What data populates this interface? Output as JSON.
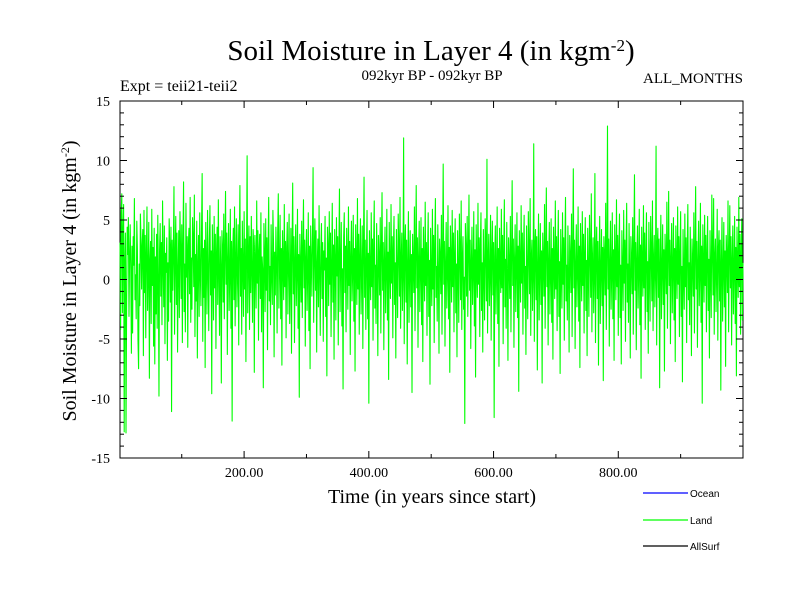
{
  "chart_data": {
    "type": "line",
    "title": "Soil Moisture in Layer 4 (in kgm",
    "title_sup": "-2",
    "title_close": ")",
    "subtitle_left": "Expt = teii21-teii2",
    "subtitle_center": "092kyr BP - 092kyr BP",
    "subtitle_right": "ALL_MONTHS",
    "xlabel": "Time (in years since start)",
    "ylabel": "Soil Moisture in Layer 4 (in kgm",
    "ylabel_sup": "-2",
    "ylabel_close": ")",
    "xlim": [
      1,
      1000
    ],
    "ylim": [
      -15,
      15
    ],
    "x_ticks": [
      200,
      400,
      600,
      800
    ],
    "x_tick_labels": [
      "200.00",
      "400.00",
      "600.00",
      "800.00"
    ],
    "y_ticks": [
      -15,
      -10,
      -5,
      0,
      5,
      10,
      15
    ],
    "y_tick_labels": [
      "-15",
      "-10",
      "-5",
      "0",
      "5",
      "10",
      "15"
    ],
    "grid": false,
    "legend_position": "bottom-right",
    "series": [
      {
        "name": "Ocean",
        "color": "#0000ff",
        "values": []
      },
      {
        "name": "Land",
        "color": "#00ff00",
        "x_start": 1,
        "x_step": 1,
        "values": [
          3.1,
          -4.2,
          5.6,
          7.2,
          -2.8,
          4.1,
          6.3,
          -12.8,
          1.5,
          3.9,
          -12.9,
          -2.4,
          4.4,
          2.1,
          5.2,
          -3.1,
          1.8,
          4.6,
          0.9,
          -6.2,
          2.8,
          -4.5,
          3.6,
          1.2,
          6.8,
          -1.7,
          0.4,
          -3.3,
          4.9,
          2.6,
          -5.1,
          -7.5,
          1.3,
          -2.2,
          5.5,
          3.4,
          -0.8,
          2.9,
          4.2,
          -6.4,
          5.8,
          -1.1,
          3.7,
          -4.9,
          2.3,
          6.1,
          -2.6,
          0.7,
          4.8,
          -8.3,
          1.6,
          3.2,
          -3.7,
          5.9,
          -0.5,
          2.7,
          -5.6,
          4.3,
          -7.1,
          1.9,
          -2.9,
          3.8,
          -4.1,
          5.4,
          0.3,
          -9.8,
          2.5,
          4.7,
          -1.4,
          3.1,
          -3.8,
          6.6,
          1.1,
          -2.3,
          4.5,
          -5.4,
          2.2,
          0.6,
          3.5,
          -6.8,
          1.4,
          -3.5,
          5.1,
          2.8,
          -1.9,
          4.4,
          -11.1,
          3.3,
          -0.9,
          2.4,
          7.8,
          -4.6,
          1.7,
          5.3,
          -2.1,
          3.9,
          -6.1,
          0.8,
          4.1,
          -3.2,
          5.7,
          2.6,
          -1.6,
          4.6,
          -5.3,
          3.1,
          8.2,
          -2.7,
          1.3,
          -4.4,
          6.4,
          0.2,
          3.6,
          -5.7,
          2.9,
          4.3,
          -1.2,
          6.9,
          -3.6,
          1.8,
          -2.5,
          5.2,
          3.4,
          -0.6,
          7.1,
          -4.8,
          2.1,
          -1.8,
          4.9,
          -6.6,
          1.2,
          3.7,
          -3.1,
          5.6,
          0.4,
          -2.2,
          4.2,
          8.9,
          -5.2,
          2.6,
          -1.5,
          3.3,
          -7.4,
          4.8,
          1.6,
          -2.9,
          5.8,
          0.9,
          -4.3,
          3.1,
          6.2,
          -1.3,
          2.4,
          -9.6,
          4.6,
          1.5,
          -3.4,
          5.3,
          -0.7,
          3.8,
          -5.8,
          2.3,
          4.4,
          -2.1,
          6.7,
          0.5,
          -4.7,
          3.6,
          1.1,
          -8.7,
          4.1,
          2.7,
          -1.9,
          5.5,
          -3.3,
          2.2,
          7.4,
          -0.4,
          3.9,
          -6.3,
          1.8,
          4.7,
          -2.6,
          0.3,
          5.9,
          -4.1,
          3.2,
          -11.9,
          2.5,
          4.3,
          -1.7,
          6.1,
          -3.9,
          1.4,
          5.1,
          -2.3,
          0.7,
          4.6,
          -5.5,
          3.3,
          7.9,
          -1.4,
          2.6,
          -4.6,
          4.9,
          1.2,
          -3.1,
          5.7,
          -0.8,
          3.4,
          -6.9,
          2.1,
          10.4,
          -2.8,
          1.7,
          4.5,
          -4.2,
          3.6,
          -1.1,
          5.3,
          0.6,
          -3.6,
          4.2,
          2.9,
          -7.8,
          3.7,
          1.3,
          -2.4,
          6.6,
          -0.3,
          4.1,
          -5.1,
          2.4,
          3.8,
          -1.6,
          5.6,
          -4.4,
          1.9,
          0.8,
          -9.1,
          4.7,
          2.2,
          -2.7,
          5.1,
          -0.9,
          3.5,
          -5.9,
          2.8,
          6.9,
          -1.8,
          1.1,
          -3.8,
          4.6,
          0.4,
          -2.1,
          5.8,
          3.1,
          -6.5,
          2.3,
          -1.3,
          4.4,
          1.6,
          -4.5,
          3.9,
          7.2,
          -2.4,
          0.9,
          5.4,
          -3.3,
          2.6,
          -7.2,
          4.1,
          1.4,
          -1.7,
          6.3,
          -0.6,
          3.2,
          -4.9,
          2.7,
          4.8,
          -2.9,
          1.5,
          5.5,
          -3.7,
          0.2,
          4.3,
          -6.2,
          2.9,
          8.1,
          -1.2,
          3.6,
          -5.3,
          1.7,
          4.6,
          -2.2,
          0.6,
          5.9,
          -4.1,
          2.1,
          -9.9,
          3.8,
          1.2,
          -1.9,
          4.9,
          -3.2,
          2.5,
          6.7,
          -0.7,
          3.3,
          -5.6,
          1.9,
          4.2,
          -2.6,
          0.5,
          5.6,
          -4.3,
          2.8,
          -7.5,
          4.5,
          1.6,
          -1.4,
          3.7,
          9.4,
          -3.6,
          2.2,
          5.1,
          -0.9,
          4.1,
          -6.1,
          1.3,
          3.4,
          -2.3,
          6.2,
          0.7,
          -4.7,
          2.6,
          4.7,
          -1.6,
          3.1,
          -5.2,
          2.4,
          0.8,
          5.3,
          -3.1,
          1.8,
          -8.1,
          4.4,
          2.7,
          -2.2,
          5.7,
          -0.4,
          3.9,
          -4.8,
          1.1,
          6.4,
          -1.9,
          2.9,
          -6.7,
          4.2,
          1.5,
          -3.4,
          5.2,
          0.3,
          3.6,
          -5.5,
          2.3,
          7.6,
          -2.7,
          1.4,
          4.8,
          -3.9,
          0.9,
          -9.2,
          3.5,
          5.6,
          -1.1,
          2.8,
          -4.4,
          4.3,
          1.7,
          -2.5,
          6.1,
          -0.5,
          3.2,
          -6.3,
          2.1,
          4.9,
          -1.8,
          0.6,
          5.4,
          -3.5,
          2.6,
          -7.7,
          4.6,
          1.3,
          -2.1,
          6.8,
          -0.8,
          3.8,
          -4.6,
          1.9,
          5.1,
          -2.9,
          0.4,
          4.5,
          -5.8,
          2.4,
          8.6,
          -1.5,
          3.3,
          -4.2,
          1.6,
          5.8,
          -3.3,
          2.2,
          -10.4,
          4.1,
          0.8,
          -1.7,
          5.6,
          -0.6,
          3.4,
          -5.1,
          2.9,
          6.6,
          -2.4,
          1.2,
          -3.7,
          4.7,
          0.5,
          -6.4,
          3.7,
          1.8,
          -1.3,
          5.2,
          -4.5,
          2.5,
          7.3,
          -0.9,
          3.1,
          -5.9,
          1.6,
          4.4,
          -2.8,
          0.7,
          5.9,
          -3.4,
          2.3,
          -8.4,
          4.8,
          1.1,
          -1.6,
          6.3,
          -0.3,
          3.6,
          -4.9,
          2.6,
          5.3,
          -2.1,
          1.4,
          -6.6,
          4.2,
          0.9,
          -3.2,
          5.5,
          2.7,
          -1.4,
          6.9,
          -4.1,
          1.7,
          3.9,
          -2.6,
          0.4,
          11.9,
          -5.4,
          2.8,
          4.6,
          -1.9,
          3.3,
          -7.1,
          1.5,
          5.7,
          -3.6,
          0.6,
          4.1,
          -2.3,
          2.1,
          -9.5,
          3.8,
          1.3,
          -1.1,
          6.1,
          -4.3,
          2.4,
          7.9,
          -0.7,
          3.5,
          -5.7,
          1.9,
          4.9,
          -2.7,
          0.8,
          5.2,
          -3.8,
          2.6,
          -6.9,
          4.4,
          1.2,
          -1.8,
          6.5,
          -0.5,
          3.1,
          -4.7,
          2.2,
          5.6,
          -3.1,
          1.6,
          -8.8,
          4.3,
          0.3,
          -2.2,
          5.9,
          -0.8,
          3.7,
          -5.3,
          2.9,
          6.8,
          -1.5,
          1.1,
          -3.5,
          4.6,
          0.7,
          -6.2,
          3.4,
          1.9,
          -1.2,
          5.4,
          -4.6,
          2.3,
          9.7,
          -0.4,
          3.2,
          -5.6,
          1.4,
          4.8,
          -2.4,
          0.5,
          6.2,
          -3.3,
          2.7,
          -7.8,
          4.5,
          1.7,
          -1.9,
          5.8,
          -0.6,
          3.9,
          -4.4,
          2.1,
          5.1,
          -2.8,
          1.3,
          -6.5,
          4.1,
          0.9,
          -3.6,
          5.5,
          2.4,
          -1.7,
          6.6,
          -4.2,
          1.8,
          3.6,
          -2.5,
          0.2,
          -12.1,
          4.7,
          2.6,
          -1.4,
          5.3,
          -3.1,
          2.2,
          7.1,
          -0.9,
          3.3,
          -5.8,
          1.5,
          4.4,
          -2.1,
          0.6,
          5.7,
          -3.9,
          2.5,
          -8.2,
          4.6,
          1.1,
          -1.5,
          6.4,
          -0.4,
          3.5,
          -4.8,
          2.8,
          5.6,
          -2.6,
          1.4,
          -6.1,
          4.2,
          0.8,
          -3.4,
          5.1,
          2.9,
          -1.8,
          10.1,
          -4.5,
          1.6,
          3.8,
          -2.2,
          0.5,
          5.4,
          -5.1,
          2.3,
          4.9,
          -1.3,
          3.1,
          -11.6,
          1.9,
          4.5,
          -2.9,
          0.4,
          6.1,
          -3.7,
          2.6,
          -7.3,
          4.3,
          1.2,
          -1.1,
          5.9,
          -0.7,
          3.7,
          -5.4,
          2.4,
          6.7,
          -2.3,
          1.7,
          -4.1,
          4.8,
          0.6,
          -6.8,
          3.5,
          1.4,
          -1.6,
          5.3,
          -4.4,
          2.1,
          8.3,
          -0.5,
          3.4,
          -5.7,
          1.8,
          4.6,
          -2.7,
          0.9,
          5.6,
          -3.2,
          2.8,
          -9.4,
          4.1,
          1.5,
          -1.9,
          6.2,
          -0.3,
          3.9,
          -4.6,
          2.2,
          5.4,
          -2.4,
          1.1,
          -6.3,
          4.5,
          0.7,
          -3.3,
          5.7,
          2.5,
          -1.2,
          6.8,
          -4.7,
          1.9,
          3.3,
          -2.6,
          0.3,
          11.4,
          -5.2,
          2.7,
          4.2,
          -1.7,
          3.6,
          -7.6,
          1.3,
          5.5,
          -3.4,
          0.8,
          4.7,
          -2.1,
          2.4,
          -8.7,
          3.9,
          1.6,
          -1.4,
          6.3,
          -4.1,
          2.3,
          7.7,
          -0.6,
          3.2,
          -5.5,
          1.7,
          4.8,
          -2.9,
          0.4,
          5.1,
          -3.6,
          2.6,
          -6.7,
          4.4,
          1.3,
          -1.6,
          6.6,
          -0.8,
          3.6,
          -4.3,
          2.1,
          5.8,
          -3.1,
          1.5,
          -7.9,
          4.2,
          0.6,
          -2.4,
          5.6,
          -0.4,
          3.5,
          -5.1,
          2.9,
          6.9,
          -1.8,
          1.2,
          -3.4,
          4.5,
          0.5,
          -6.1,
          3.7,
          1.8,
          -1.1,
          5.5,
          -4.8,
          2.5,
          9.3,
          -0.7,
          3.3,
          -5.8,
          1.4,
          4.6,
          -2.3,
          0.7,
          6.1,
          -3.5,
          2.8,
          -7.4,
          4.7,
          1.1,
          -1.8,
          5.7,
          -0.5,
          3.8,
          -4.5,
          2.2,
          5.2,
          -2.6,
          1.6,
          -6.4,
          4.3,
          0.8,
          -3.1,
          5.4,
          2.6,
          -1.5,
          7.2,
          -4.4,
          1.7,
          3.5,
          -2.8,
          0.3,
          8.9,
          -5.3,
          2.4,
          4.4,
          -1.6,
          3.2,
          -7.2,
          1.5,
          5.3,
          -3.7,
          0.6,
          4.2,
          -2.2,
          2.7,
          -8.5,
          3.6,
          1.9,
          -1.3,
          6.4,
          -4.2,
          2.1,
          12.9,
          -0.8,
          3.4,
          -5.6,
          1.6,
          4.9,
          -2.5,
          0.5,
          5.6,
          -3.3,
          2.5,
          -6.8,
          4.6,
          1.4,
          -1.7,
          6.7,
          -0.6,
          3.7,
          -4.7,
          2.3,
          5.5,
          -3.2,
          1.2,
          -7.1,
          4.1,
          0.9,
          -2.6,
          5.8,
          -0.3,
          3.3,
          -5.2,
          2.8,
          6.4,
          -1.9,
          1.3,
          -3.6,
          4.7,
          0.4,
          -6.6,
          3.6,
          1.7,
          -1.2,
          5.2,
          -4.6,
          2.6,
          8.8,
          -0.9,
          3.1,
          -5.9,
          1.8,
          4.5,
          -2.4,
          0.6,
          5.9,
          -3.8,
          2.9,
          -8.3,
          4.4,
          1.2,
          -1.4,
          6.2,
          -0.7,
          3.9,
          -4.2,
          2.1,
          5.6,
          -2.7,
          1.5,
          -6.2,
          4.8,
          0.7,
          -3.5,
          5.3,
          2.4,
          -1.8,
          6.6,
          -4.3,
          1.6,
          3.7,
          -2.3,
          0.4,
          11.2,
          -5.5,
          2.7,
          4.3,
          -1.5,
          3.4,
          -9.1,
          1.4,
          5.4,
          -3.3,
          0.8,
          4.6,
          -2.1,
          2.5,
          -7.7,
          3.8,
          1.6,
          -1.2,
          6.5,
          -4.1,
          2.2,
          7.4,
          -0.5,
          3.3,
          -5.4,
          1.9,
          4.7,
          -2.8,
          0.9,
          5.2,
          -3.4,
          2.6,
          -6.9,
          4.5,
          1.3,
          -1.6,
          6.1,
          -0.4,
          3.6,
          -4.8,
          2.4,
          5.7,
          -3.1,
          1.1,
          -8.6,
          4.2,
          0.5,
          -2.5,
          5.5,
          -0.6,
          3.5,
          -5.3,
          2.7,
          6.3,
          -1.7,
          1.4,
          -3.8,
          4.4,
          0.8,
          -6.4,
          3.4,
          1.6,
          -1.4,
          5.6,
          -4.5,
          2.3,
          7.8,
          -0.8,
          3.2,
          -5.7,
          1.5,
          4.9,
          -2.2,
          0.4,
          6.4,
          -3.6,
          2.8,
          -10.4,
          4.6,
          1.2,
          -1.9,
          5.4,
          -0.5,
          3.7,
          -4.4,
          2.2,
          5.3,
          -2.6,
          1.7,
          -6.6,
          4.1,
          0.6,
          -3.2,
          7.1,
          2.5,
          -1.3,
          6.8,
          -4.6,
          1.9,
          3.4,
          -2.7,
          0.5,
          5.9,
          -5.1,
          2.6,
          4.1,
          -1.8,
          3.3,
          -9.3,
          1.6,
          5.2,
          -3.5,
          0.7,
          4.8,
          -2.3,
          2.4,
          -7.3,
          3.7,
          1.8,
          -1.1,
          6.6,
          -4.4,
          2.1,
          6.2,
          -0.7,
          3.6,
          -5.5,
          1.7,
          4.5,
          -2.9,
          0.8,
          5.3,
          -3.7,
          2.7,
          -8.1,
          4.4,
          1.1,
          -1.5,
          6.9,
          -0.6,
          3.8,
          -4.6,
          2.3,
          5.1,
          -3.4,
          1.4
        ]
      },
      {
        "name": "AllSurf",
        "color": "#000000",
        "values": []
      }
    ]
  }
}
